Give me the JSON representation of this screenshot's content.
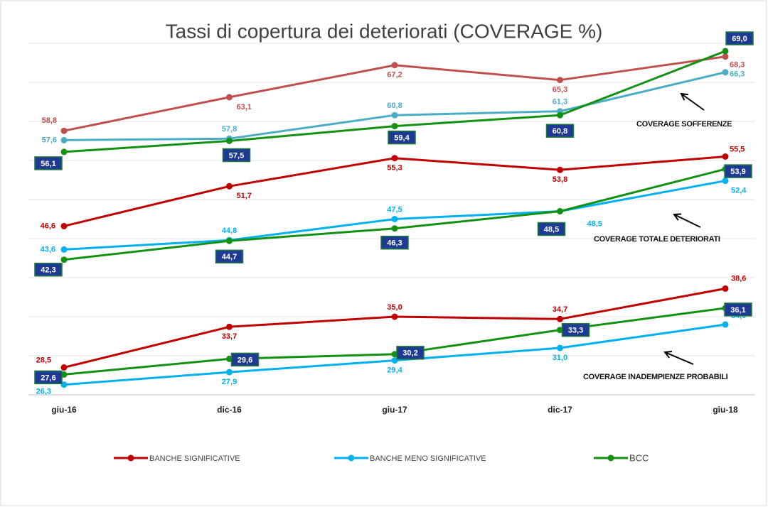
{
  "chart_data": {
    "type": "line",
    "title": "Tassi di copertura dei deteriorati (COVERAGE %)",
    "categories": [
      "giu-16",
      "dic-16",
      "giu-17",
      "dic-17",
      "giu-18"
    ],
    "ylim": [
      25,
      70
    ],
    "yticks": [
      25,
      30,
      35,
      40,
      45,
      50,
      55,
      60,
      65,
      70
    ],
    "grid": true,
    "legend": "bottom",
    "series": [
      {
        "name": "BANCHE SIGNIFICATIVE",
        "color": "#c00000"
      },
      {
        "name": "BANCHE MENO SIGNIFICATIVE",
        "color": "#00b0f0"
      },
      {
        "name": "BCC",
        "color": "#139113"
      }
    ],
    "groups": [
      {
        "label": "COVERAGE SOFFERENZE",
        "lines": [
          {
            "color": "#c0504d",
            "values": [
              58.8,
              63.1,
              67.2,
              65.3,
              68.3
            ],
            "value_labels": [
              "58,8",
              "63,1",
              "67,2",
              "65,3",
              "68,3"
            ]
          },
          {
            "color": "#4bacc6",
            "values": [
              57.6,
              57.8,
              60.8,
              61.3,
              66.3
            ],
            "value_labels": [
              "57,6",
              "57,8",
              "60,8",
              "61,3",
              "66,3"
            ]
          },
          {
            "color": "#139113",
            "values": [
              56.1,
              57.5,
              59.4,
              60.8,
              69.0
            ],
            "value_labels": [
              "56,1",
              "57,5",
              "59,4",
              "60,8",
              "69,0"
            ]
          }
        ]
      },
      {
        "label": "COVERAGE TOTALE DETERIORATI",
        "lines": [
          {
            "color": "#c00000",
            "values": [
              46.6,
              51.7,
              55.3,
              53.8,
              55.5
            ],
            "value_labels": [
              "46,6",
              "51,7",
              "55,3",
              "53,8",
              "55,5"
            ]
          },
          {
            "color": "#00b0f0",
            "values": [
              43.6,
              44.8,
              47.5,
              48.5,
              52.4
            ],
            "value_labels": [
              "43,6",
              "44,8",
              "47,5",
              "48,5",
              "52,4"
            ]
          },
          {
            "color": "#139113",
            "values": [
              42.3,
              44.7,
              46.3,
              48.5,
              53.9
            ],
            "value_labels": [
              "42,3",
              "44,7",
              "46,3",
              "48,5",
              "53,9"
            ]
          }
        ]
      },
      {
        "label": "COVERAGE INADEMPIENZE PROBABILI",
        "lines": [
          {
            "color": "#c00000",
            "values": [
              28.5,
              33.7,
              35.0,
              34.7,
              38.6
            ],
            "value_labels": [
              "28,5",
              "33,7",
              "35,0",
              "34,7",
              "38,6"
            ]
          },
          {
            "color": "#00b0f0",
            "values": [
              26.3,
              27.9,
              29.4,
              31.0,
              34.0
            ],
            "value_labels": [
              "26,3",
              "27,9",
              "29,4",
              "31,0",
              "34,0"
            ]
          },
          {
            "color": "#139113",
            "values": [
              27.6,
              29.6,
              30.2,
              33.3,
              36.1
            ],
            "value_labels": [
              "27,6",
              "29,6",
              "30,2",
              "33,3",
              "36,1"
            ]
          }
        ]
      }
    ]
  }
}
